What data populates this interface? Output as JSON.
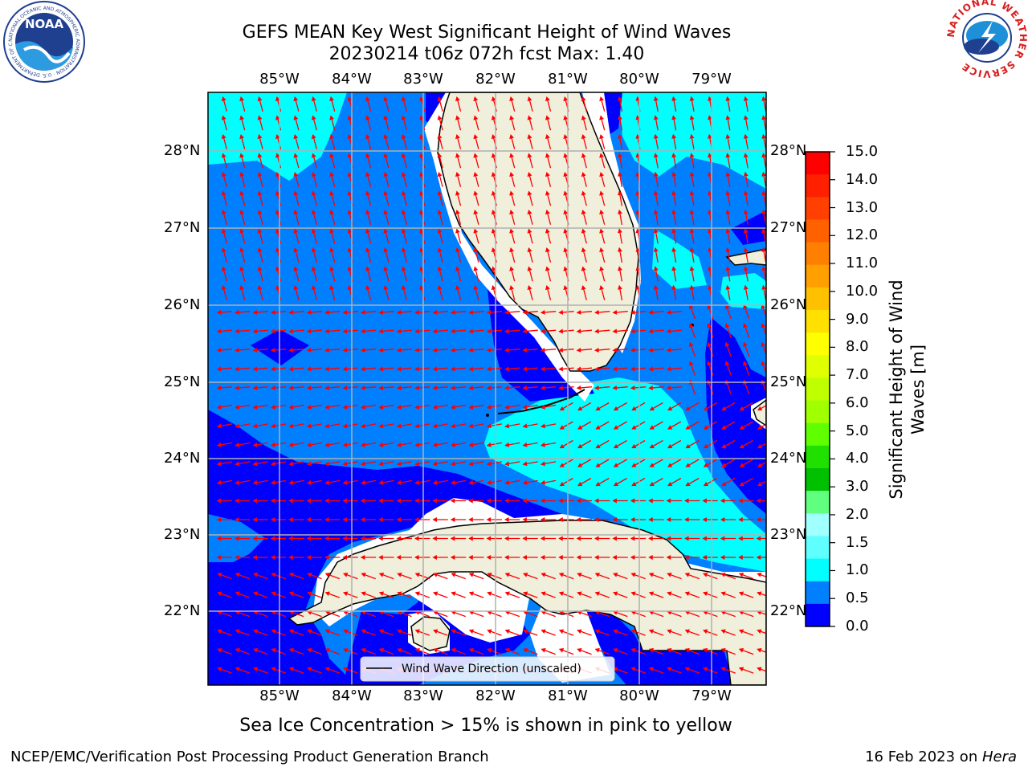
{
  "header": {
    "title_line1": "GEFS MEAN Key West Significant Height of Wind Waves",
    "title_line2": "20230214 t06z 072h fcst   Max: 1.40"
  },
  "logos": {
    "left": {
      "text": "NOAA",
      "ring_text": "NATIONAL OCEANIC AND ATMOSPHERIC ADMINISTRATION · U.S. DEPARTMENT OF COMMERCE"
    },
    "right": {
      "ring_text": "NATIONAL WEATHER SERVICE"
    }
  },
  "map": {
    "lon_labels": [
      "85°W",
      "84°W",
      "83°W",
      "82°W",
      "81°W",
      "80°W",
      "79°W"
    ],
    "lat_labels": [
      "28°N",
      "27°N",
      "26°N",
      "25°N",
      "24°N",
      "23°N",
      "22°N"
    ],
    "legend_label": "Wind Wave Direction (unscaled)",
    "colors": {
      "land": "#efefdc",
      "level_0": "#0000ff",
      "level_1": "#0080ff",
      "level_2": "#00ffff",
      "arrow": "#ff0000",
      "grid": "#b0b0b0"
    }
  },
  "colorbar": {
    "label_line1": "Significant Height of Wind",
    "label_line2": "Waves [m]",
    "ticks": [
      "15.0",
      "14.0",
      "13.0",
      "12.0",
      "11.0",
      "10.0",
      "9.0",
      "8.0",
      "7.0",
      "6.0",
      "5.0",
      "4.0",
      "3.0",
      "2.0",
      "1.5",
      "1.0",
      "0.5",
      "0.0"
    ],
    "colors": [
      "#ff0000",
      "#ff2000",
      "#ff4000",
      "#ff6000",
      "#ff8000",
      "#ffa000",
      "#ffc000",
      "#ffe000",
      "#ffff00",
      "#e0ff00",
      "#c0ff00",
      "#a0ff00",
      "#60ff00",
      "#20e000",
      "#00c000",
      "#60ff80",
      "#a0ffff",
      "#60ffff",
      "#00ffff",
      "#0080ff",
      "#0000ff"
    ]
  },
  "notes": {
    "sea_ice": "Sea Ice Concentration > 15% is shown in pink to yellow",
    "credit": "NCEP/EMC/Verification Post Processing Product Generation Branch",
    "date": "16 Feb 2023 on ",
    "machine": "Hera"
  }
}
